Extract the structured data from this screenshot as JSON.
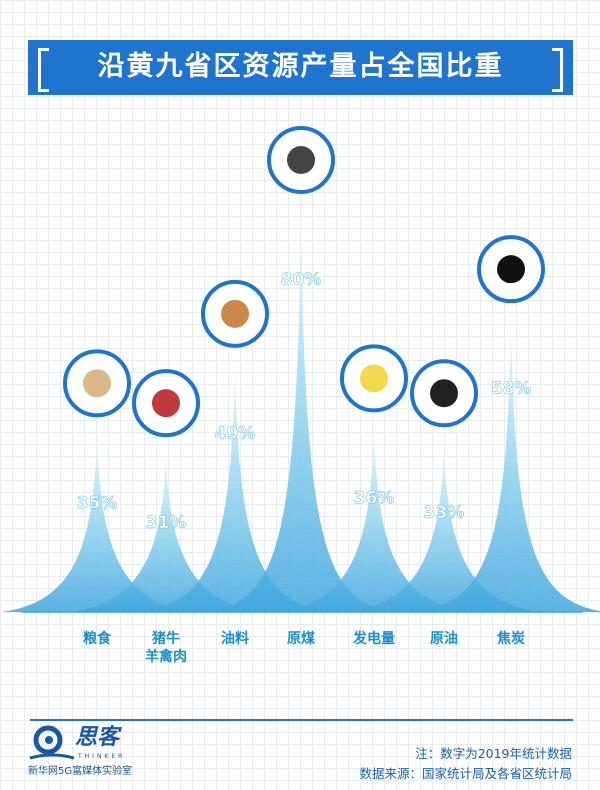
{
  "title": "沿黄九省区资源产量占全国比重",
  "chart_data": {
    "type": "area",
    "title": "沿黄九省区资源产量占全国比重",
    "categories": [
      "粮食",
      "猪牛\n羊禽肉",
      "油料",
      "原煤",
      "发电量",
      "原油",
      "焦炭"
    ],
    "values": [
      35,
      31,
      49,
      80,
      36,
      33,
      58
    ],
    "labels": [
      "35%",
      "31%",
      "49%",
      "80%",
      "36%",
      "33%",
      "58%"
    ],
    "icons": [
      "grain-sack-icon",
      "meat-icon",
      "peanut-icon",
      "coal-cart-icon",
      "light-bulb-icon",
      "oil-barrel-icon",
      "coke-briquette-icon"
    ],
    "ylim": [
      0,
      80
    ],
    "color": "#5bb8e6"
  },
  "footer": {
    "logo_text": "思客",
    "logo_sub_en": "THINKER",
    "logo_sub": "新华网5G富媒体实验室",
    "note": "注：数字为2019年统计数据",
    "source": "数据来源：国家统计局及各省区统计局"
  }
}
